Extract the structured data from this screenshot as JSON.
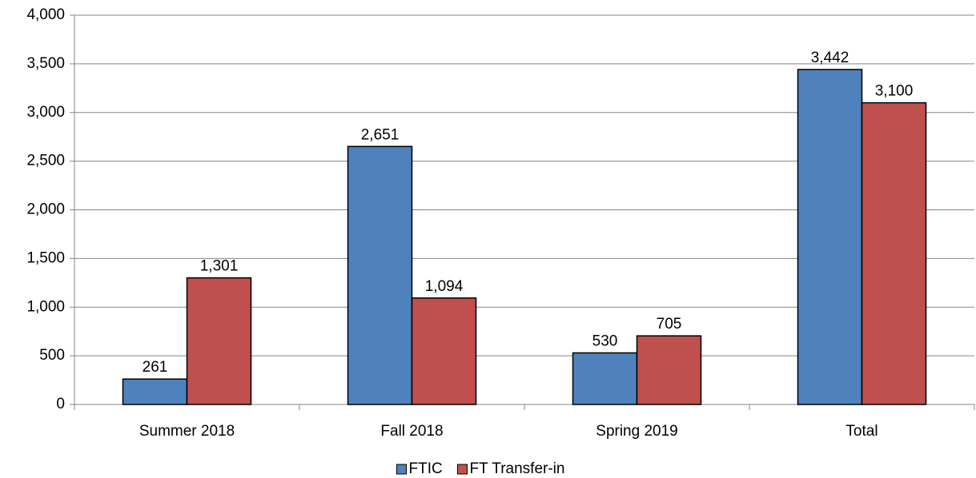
{
  "chart_data": {
    "type": "bar",
    "categories": [
      "Summer 2018",
      "Fall 2018",
      "Spring 2019",
      "Total"
    ],
    "series": [
      {
        "name": "FTIC",
        "color": "#4f81bd",
        "values": [
          261,
          2651,
          530,
          3442
        ],
        "value_labels": [
          "261",
          "2,651",
          "530",
          "3,442"
        ]
      },
      {
        "name": "FT Transfer-in",
        "color": "#c0504d",
        "values": [
          1301,
          1094,
          705,
          3100
        ],
        "value_labels": [
          "1,301",
          "1,094",
          "705",
          "3,100"
        ]
      }
    ],
    "ylim": [
      0,
      4000
    ],
    "yticks": [
      0,
      500,
      {
        "value": 1000,
        "label": "1,000"
      },
      {
        "value": 1500,
        "label": "1,500"
      },
      {
        "value": 2000,
        "label": "2,000"
      },
      {
        "value": 2500,
        "label": "2,500"
      },
      {
        "value": 3000,
        "label": "3,000"
      },
      {
        "value": 3500,
        "label": "3,500"
      },
      {
        "value": 4000,
        "label": "4,000"
      }
    ],
    "grid": true,
    "legend": "bottom"
  }
}
